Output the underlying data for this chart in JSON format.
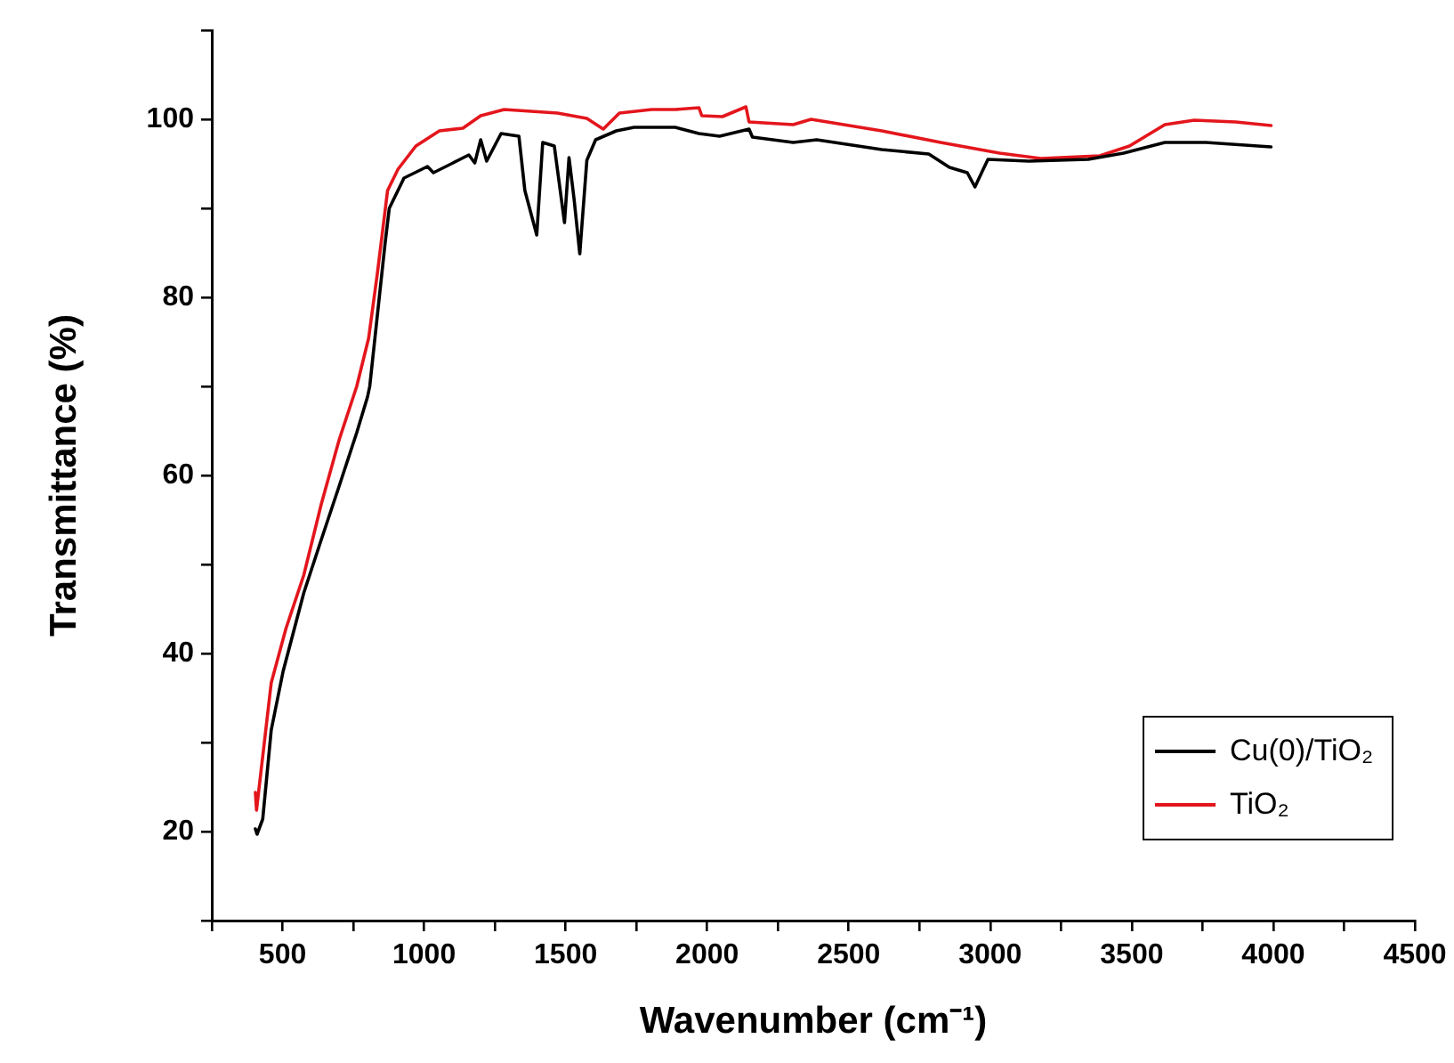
{
  "chart_data": {
    "type": "line",
    "xlabel": "Wavenumber (cm⁻¹)",
    "ylabel": "Transmittance (%)",
    "xlim": [
      250,
      4500
    ],
    "xticks": [
      {
        "value": 250,
        "label": null
      },
      500,
      {
        "value": 750,
        "label": null
      },
      1000,
      {
        "value": 1250,
        "label": null
      },
      1500,
      {
        "value": 1750,
        "label": null
      },
      2000,
      {
        "value": 2250,
        "label": null
      },
      2500,
      {
        "value": 2750,
        "label": null
      },
      3000,
      {
        "value": 3250,
        "label": null
      },
      3500,
      {
        "value": 3750,
        "label": null
      },
      4000,
      {
        "value": 4250,
        "label": null
      },
      4500
    ],
    "ylim": [
      10,
      110
    ],
    "yticks": [
      {
        "value": 10,
        "label": null
      },
      20,
      {
        "value": 30,
        "label": null
      },
      40,
      {
        "value": 50,
        "label": null
      },
      60,
      {
        "value": 70,
        "label": null
      },
      80,
      {
        "value": 90,
        "label": null
      },
      100,
      {
        "value": 110,
        "label": null
      }
    ],
    "grid": false,
    "legend": "bottom right",
    "marker": "none",
    "line_style": "solid",
    "series": [
      {
        "name": "Cu(0)/TiO₂",
        "color": "#000000",
        "x": [
          404,
          410,
          430,
          460,
          502,
          575,
          637,
          700,
          762,
          800,
          808,
          835,
          862,
          877,
          929,
          1012,
          1033,
          1096,
          1158,
          1179,
          1200,
          1221,
          1272,
          1335,
          1356,
          1398,
          1419,
          1460,
          1496,
          1512,
          1530,
          1550,
          1575,
          1606,
          1679,
          1742,
          1887,
          1971,
          2044,
          2148,
          2160,
          2304,
          2387,
          2617,
          2783,
          2856,
          2919,
          2946,
          2971,
          2992,
          3137,
          3346,
          3471,
          3617,
          3762,
          3992
        ],
        "values": [
          20.3,
          19.7,
          21.4,
          31.4,
          38,
          46.8,
          52.8,
          58.8,
          64.8,
          68.8,
          70,
          78,
          86,
          90,
          93.4,
          94.7,
          94,
          95,
          96,
          95.1,
          97.7,
          95.3,
          98.4,
          98.1,
          92,
          87,
          97.4,
          97,
          88.4,
          95.7,
          91,
          84.9,
          95.4,
          97.7,
          98.7,
          99.1,
          99.1,
          98.4,
          98.1,
          98.9,
          98,
          97.4,
          97.7,
          96.6,
          96.1,
          94.6,
          94,
          92.4,
          94.1,
          95.5,
          95.3,
          95.5,
          96.2,
          97.4,
          97.4,
          96.9
        ]
      },
      {
        "name": "TiO₂",
        "color": "#e3161c",
        "x": [
          404,
          408,
          460,
          512,
          575,
          637,
          700,
          762,
          804,
          835,
          871,
          908,
          971,
          1054,
          1137,
          1200,
          1283,
          1471,
          1575,
          1633,
          1690,
          1804,
          1887,
          1971,
          1981,
          2054,
          2137,
          2148,
          2304,
          2367,
          2617,
          2825,
          3033,
          3179,
          3387,
          3492,
          3617,
          3721,
          3867,
          3992
        ],
        "values": [
          24.4,
          22.4,
          36.7,
          42.8,
          48.8,
          56.8,
          64,
          70,
          75.4,
          82.7,
          92,
          94.4,
          97,
          98.7,
          99,
          100.4,
          101.1,
          100.7,
          100.1,
          98.9,
          100.7,
          101.1,
          101.1,
          101.3,
          100.4,
          100.3,
          101.4,
          99.7,
          99.4,
          100,
          98.7,
          97.4,
          96.2,
          95.6,
          95.9,
          97,
          99.4,
          99.9,
          99.7,
          99.3
        ]
      }
    ]
  }
}
